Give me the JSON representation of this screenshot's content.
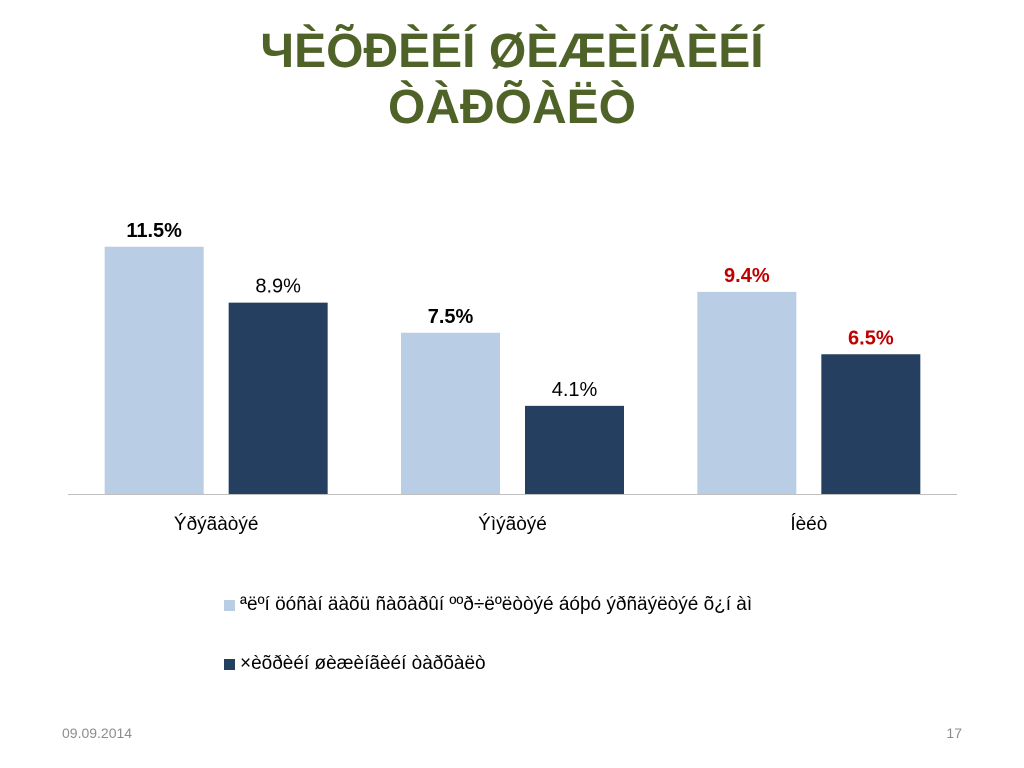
{
  "slide": {
    "title_line1": "ЧÈÕÐÈÉÍ ØÈÆÈÍÃÈÉÍ",
    "title_line2": "ÒÀÐÕÀËÒ",
    "date": "09.09.2014",
    "page_number": "17"
  },
  "chart_data": {
    "type": "bar",
    "categories": [
      "Ýðýãàòýé",
      "Ýìýãòýé",
      "Íèéò"
    ],
    "series": [
      {
        "name": "ªëºí öóñàí äàõü ñàõàðûí ººð÷ëºëòòýé áóþó ýðñäýëòýé õ¿í àì",
        "values": [
          11.5,
          7.5,
          9.4
        ],
        "labels": [
          "11.5%",
          "7.5%",
          "9.4%"
        ],
        "label_colors": [
          "#000000",
          "#000000",
          "#c00000"
        ],
        "label_bold": [
          true,
          true,
          true
        ],
        "color": "#b9cde5"
      },
      {
        "name": "×èõðèéí øèæèíãèéí òàðõàëò",
        "values": [
          8.9,
          4.1,
          6.5
        ],
        "labels": [
          "8.9%",
          "4.1%",
          "6.5%"
        ],
        "label_colors": [
          "#000000",
          "#000000",
          "#c00000"
        ],
        "label_bold": [
          false,
          false,
          true
        ],
        "color": "#243f60"
      }
    ],
    "ylim": [
      0,
      13
    ],
    "grid": false,
    "legend_position": "bottom"
  }
}
